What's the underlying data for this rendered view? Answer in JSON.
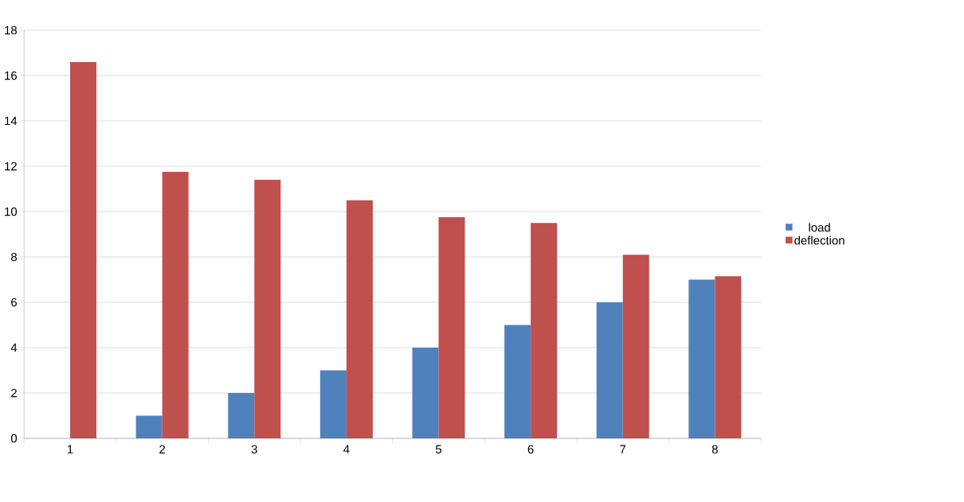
{
  "chart_data": {
    "type": "bar",
    "categories": [
      "1",
      "2",
      "3",
      "4",
      "5",
      "6",
      "7",
      "8"
    ],
    "series": [
      {
        "name": "load",
        "color": "#4f81bd",
        "values": [
          0,
          1,
          2,
          3,
          4,
          5,
          6,
          7
        ]
      },
      {
        "name": "deflection",
        "color": "#c0504d",
        "values": [
          16.6,
          11.75,
          11.4,
          10.5,
          9.75,
          9.5,
          8.1,
          7.15
        ]
      }
    ],
    "ylim": [
      0,
      18
    ],
    "yticks": [
      0,
      2,
      4,
      6,
      8,
      10,
      12,
      14,
      16,
      18
    ],
    "grid": "y",
    "legend": "right"
  }
}
